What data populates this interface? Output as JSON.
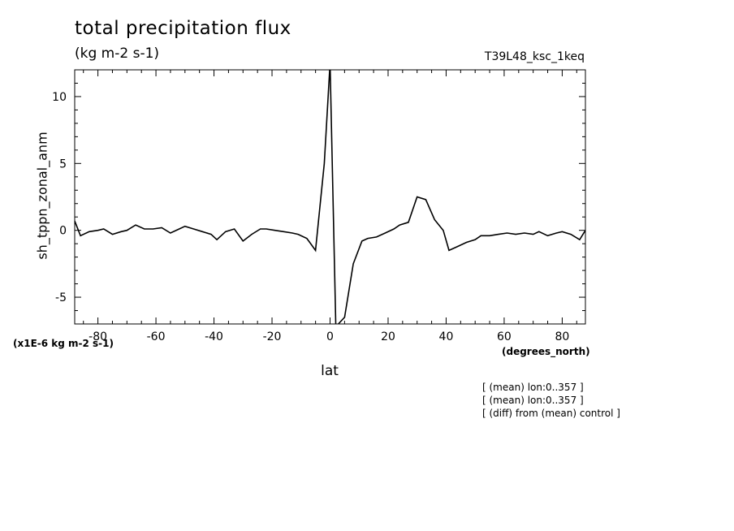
{
  "chart_data": {
    "type": "line",
    "title": "total precipitation flux",
    "subtitle": "(kg m-2 s-1)",
    "run_id": "T39L48_ksc_1keq",
    "ylabel": "sh_tppn_zonal_anm",
    "xlabel": "lat",
    "x_units": "(degrees_north)",
    "y_scale_note": "(x1E-6 kg m-2 s-1)",
    "xlim": [
      -88,
      88
    ],
    "ylim": [
      -7,
      12
    ],
    "x_ticks": [
      -80,
      -60,
      -40,
      -20,
      0,
      20,
      40,
      60,
      80
    ],
    "y_ticks": [
      -5,
      0,
      5,
      10
    ],
    "grid": false,
    "series": [
      {
        "x": [
          -88,
          -86,
          -83,
          -80,
          -78,
          -75,
          -72,
          -70,
          -67,
          -64,
          -61,
          -58,
          -55,
          -52,
          -50,
          -47,
          -44,
          -41,
          -39,
          -36,
          -33,
          -30,
          -27,
          -24,
          -22,
          -19,
          -16,
          -13,
          -11,
          -8,
          -5,
          -2,
          0,
          2,
          5,
          8,
          11,
          13,
          16,
          19,
          22,
          24,
          27,
          30,
          33,
          36,
          39,
          41,
          44,
          47,
          50,
          52,
          55,
          58,
          61,
          64,
          67,
          70,
          72,
          75,
          78,
          80,
          83,
          86,
          88
        ],
        "y": [
          0.7,
          -0.4,
          -0.1,
          0.0,
          0.1,
          -0.3,
          -0.1,
          0.0,
          0.4,
          0.1,
          0.1,
          0.2,
          -0.2,
          0.1,
          0.3,
          0.1,
          -0.1,
          -0.3,
          -0.7,
          -0.1,
          0.1,
          -0.8,
          -0.3,
          0.1,
          0.1,
          0.0,
          -0.1,
          -0.2,
          -0.3,
          -0.6,
          -1.5,
          5.0,
          12.5,
          -7.2,
          -6.5,
          -2.5,
          -0.8,
          -0.6,
          -0.5,
          -0.2,
          0.1,
          0.4,
          0.6,
          2.5,
          2.3,
          0.8,
          0.0,
          -1.5,
          -1.2,
          -0.9,
          -0.7,
          -0.4,
          -0.4,
          -0.3,
          -0.2,
          -0.3,
          -0.2,
          -0.3,
          -0.1,
          -0.4,
          -0.2,
          -0.1,
          -0.3,
          -0.7,
          0.0
        ]
      }
    ]
  },
  "notes": [
    "[ (mean) lon:0..357 ]",
    "[ (mean) lon:0..357 ]",
    "[ (diff) from (mean) control ]"
  ]
}
